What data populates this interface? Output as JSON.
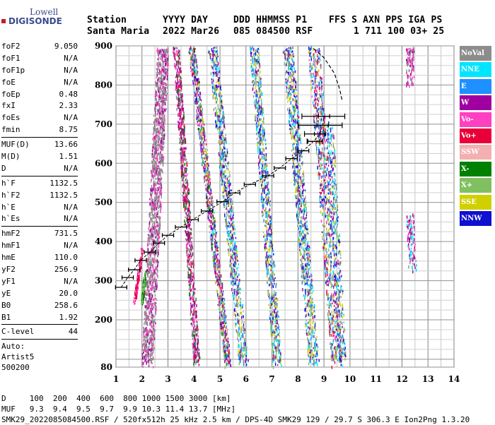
{
  "logo": {
    "company": "Lowell",
    "product": "DIGISONDE"
  },
  "header": {
    "row1": [
      "Station",
      "YYYY DAY",
      "DDD HHMMSS P1",
      "FFS S AXN PPS IGA PS"
    ],
    "row2": [
      "Santa Maria",
      "2022 Mar26",
      "085 084500 RSF",
      "1 711 100 03+ 25"
    ]
  },
  "parameters": {
    "group1": [
      {
        "name": "foF2",
        "value": "9.050"
      },
      {
        "name": "foF1",
        "value": "N/A"
      },
      {
        "name": "foF1p",
        "value": "N/A"
      },
      {
        "name": "foE",
        "value": "N/A"
      },
      {
        "name": "foEp",
        "value": "0.48"
      },
      {
        "name": "fxI",
        "value": "2.33"
      },
      {
        "name": "foEs",
        "value": "N/A"
      },
      {
        "name": "fmin",
        "value": "8.75"
      }
    ],
    "group2": [
      {
        "name": "MUF(D)",
        "value": "13.66"
      },
      {
        "name": "M(D)",
        "value": "1.51"
      },
      {
        "name": "D",
        "value": "N/A"
      }
    ],
    "group3": [
      {
        "name": "h`F",
        "value": "1132.5"
      },
      {
        "name": "h`F2",
        "value": "1132.5"
      },
      {
        "name": "h`E",
        "value": "N/A"
      },
      {
        "name": "h`Es",
        "value": "N/A"
      }
    ],
    "group4": [
      {
        "name": "hmF2",
        "value": "731.5"
      },
      {
        "name": "hmF1",
        "value": "N/A"
      },
      {
        "name": "hmE",
        "value": "110.0"
      },
      {
        "name": "yF2",
        "value": "256.9"
      },
      {
        "name": "yF1",
        "value": "N/A"
      },
      {
        "name": "yE",
        "value": "20.0"
      },
      {
        "name": "B0",
        "value": "258.6"
      },
      {
        "name": "B1",
        "value": "1.92"
      }
    ],
    "c_level": {
      "name": "C-level",
      "value": "44"
    },
    "auto_lines": [
      "Auto:",
      "Artist5",
      "500200"
    ]
  },
  "legend": [
    {
      "label": "NoVal",
      "color": "#8c8c8c",
      "text_color": "#ffffff"
    },
    {
      "label": "NNE",
      "color": "#00e5ff",
      "text_color": "#ffffff"
    },
    {
      "label": "E",
      "color": "#1e90ff",
      "text_color": "#ffffff"
    },
    {
      "label": "W",
      "color": "#a000a0",
      "text_color": "#ffffff"
    },
    {
      "label": "Vo-",
      "color": "#ff40c0",
      "text_color": "#ffffff"
    },
    {
      "label": "Vo+",
      "color": "#e8003a",
      "text_color": "#ffffff"
    },
    {
      "label": "SSW",
      "color": "#f4b0b0",
      "text_color": "#ffffff"
    },
    {
      "label": "X-",
      "color": "#008000",
      "text_color": "#ffffff"
    },
    {
      "label": "X+",
      "color": "#80c060",
      "text_color": "#ffffff"
    },
    {
      "label": "SSE",
      "color": "#d0d000",
      "text_color": "#ffffff"
    },
    {
      "label": "NNW",
      "color": "#1010d0",
      "text_color": "#ffffff"
    }
  ],
  "footer": {
    "line1": "D     100  200  400  600  800 1000 1500 3000 [km]",
    "line2": "MUF   9.3  9.4  9.5  9.7  9.9 10.3 11.4 13.7 [MHz]",
    "line3": "SMK29_2022085084500.RSF / 520fx512h 25 kHz 2.5 km / DPS-4D SMK29 129 / 29.7 S 306.3 E Ion2Png 1.3.20"
  },
  "chart_data": {
    "type": "scatter",
    "x_ticks": [
      1,
      2,
      3,
      4,
      5,
      6,
      7,
      8,
      9,
      10,
      11,
      12,
      13,
      14
    ],
    "y_ticks": [
      80,
      200,
      300,
      400,
      500,
      600,
      700,
      800,
      900
    ],
    "xlim": [
      1,
      14
    ],
    "ylim": [
      80,
      900
    ],
    "profile_points": [
      {
        "x": 1.2,
        "y": 283
      },
      {
        "x": 1.45,
        "y": 308
      },
      {
        "x": 1.7,
        "y": 328
      },
      {
        "x": 1.95,
        "y": 352
      },
      {
        "x": 2.3,
        "y": 373
      },
      {
        "x": 2.65,
        "y": 396
      },
      {
        "x": 3.0,
        "y": 416
      },
      {
        "x": 3.5,
        "y": 437
      },
      {
        "x": 3.95,
        "y": 456
      },
      {
        "x": 4.5,
        "y": 478
      },
      {
        "x": 5.1,
        "y": 502
      },
      {
        "x": 5.55,
        "y": 524
      },
      {
        "x": 6.15,
        "y": 546
      },
      {
        "x": 6.85,
        "y": 568
      },
      {
        "x": 7.3,
        "y": 588
      },
      {
        "x": 7.75,
        "y": 612
      },
      {
        "x": 8.2,
        "y": 632
      },
      {
        "x": 8.6,
        "y": 656
      },
      {
        "x": 8.85,
        "y": 675
      },
      {
        "x": 8.95,
        "y": 697
      },
      {
        "x": 9.0,
        "y": 720
      }
    ],
    "error_bars": [
      {
        "x": 9.0,
        "y": 720,
        "xmin": 8.15,
        "xmax": 9.8
      },
      {
        "x": 8.9,
        "y": 697,
        "xmin": 8.0,
        "xmax": 9.7
      },
      {
        "x": 8.75,
        "y": 675,
        "xmin": 8.25,
        "xmax": 9.0
      },
      {
        "x": 8.6,
        "y": 656,
        "xmin": 8.35,
        "xmax": 8.95
      }
    ],
    "ordinary_trace": [
      {
        "x": 8.6,
        "y": 893
      },
      {
        "x": 9.0,
        "y": 870
      },
      {
        "x": 9.4,
        "y": 830
      },
      {
        "x": 9.6,
        "y": 790
      },
      {
        "x": 9.7,
        "y": 760
      }
    ],
    "grid": true
  }
}
